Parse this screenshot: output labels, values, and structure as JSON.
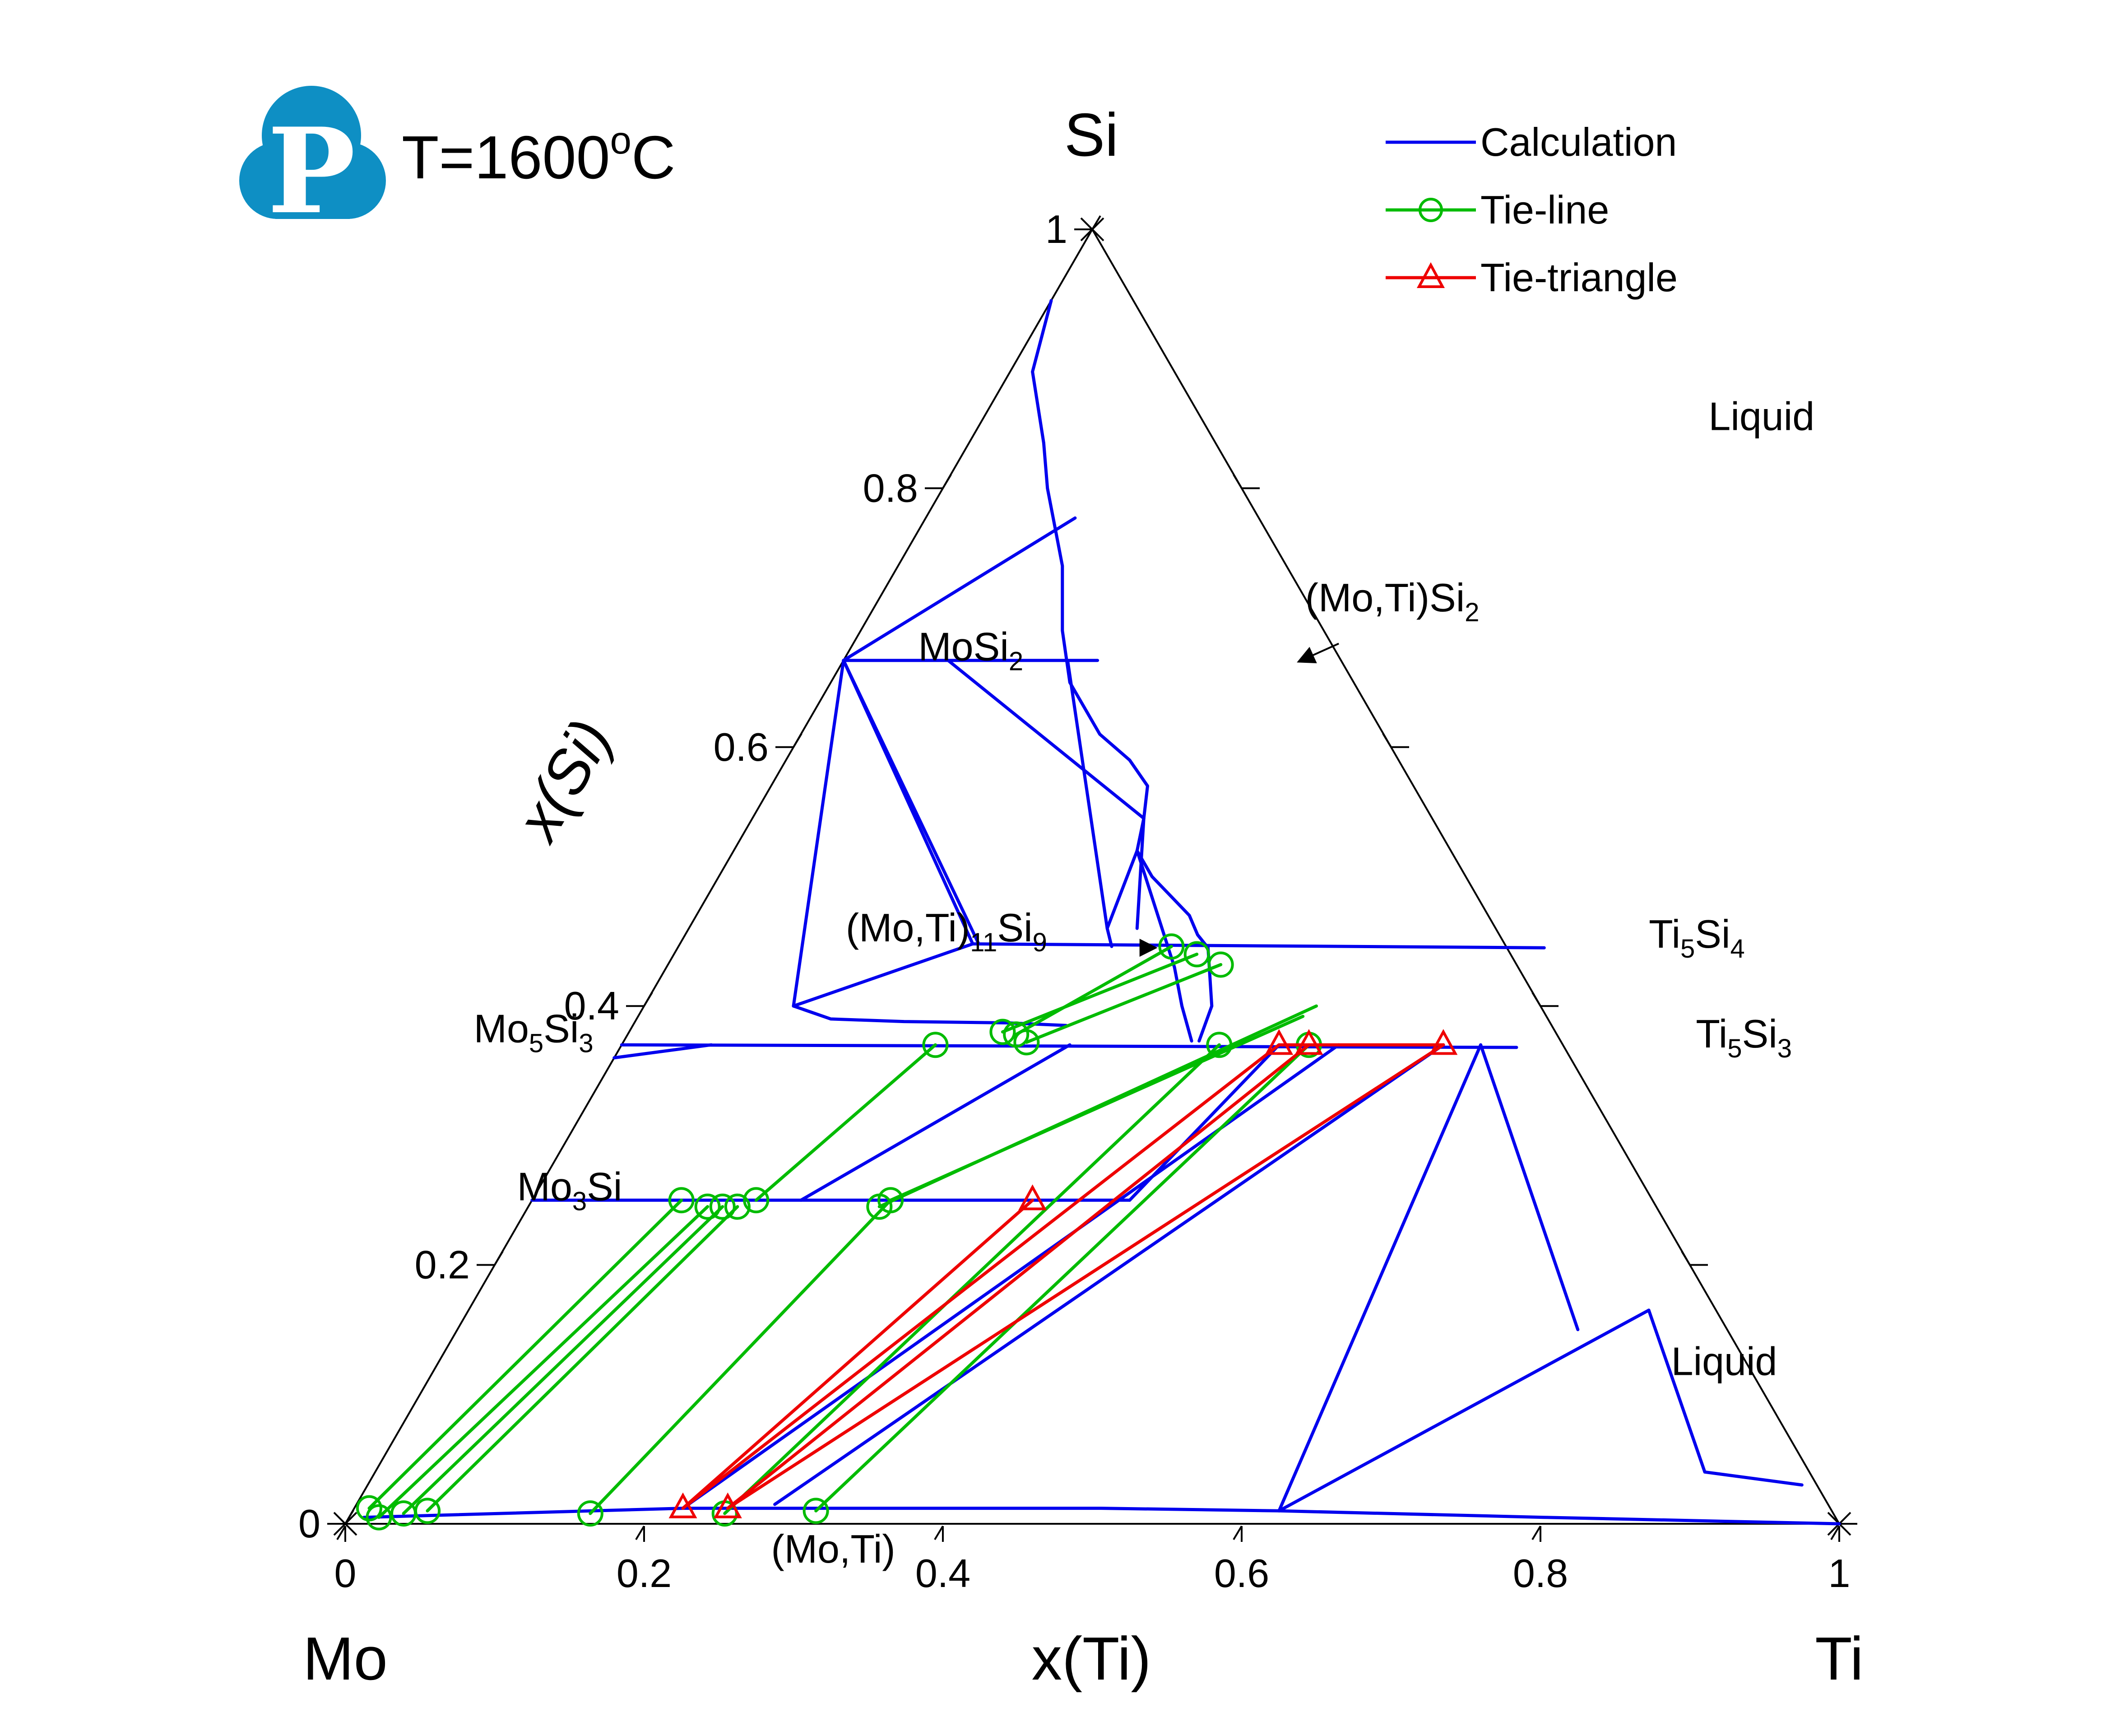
{
  "title": {
    "prefix": "T=1600",
    "sup": "o",
    "suffix": "C"
  },
  "logo": {
    "letter": "P",
    "color": "#0e8fc4"
  },
  "colors": {
    "calc": "#0000ee",
    "tieline": "#00bb00",
    "tietri": "#ee0000",
    "frame": "#000000"
  },
  "legend": {
    "items": [
      {
        "label": "Calculation",
        "kind": "calc"
      },
      {
        "label": "Tie-line",
        "kind": "tieline"
      },
      {
        "label": "Tie-triangle",
        "kind": "tietri"
      }
    ]
  },
  "chart_data": {
    "type": "ternary",
    "corners": {
      "top": "Si",
      "left": "Mo",
      "right": "Ti"
    },
    "xlabel": "x(Ti)",
    "ylabel": "x(Si)",
    "x_ticks": [
      "0",
      "0.2",
      "0.4",
      "0.6",
      "0.8",
      "1"
    ],
    "y_ticks": [
      "0",
      "0.2",
      "0.4",
      "0.6",
      "0.8",
      "1"
    ],
    "tick_values": [
      0,
      0.2,
      0.4,
      0.6,
      0.8,
      1
    ],
    "labels": [
      {
        "text": "Liquid",
        "ti": 0.49,
        "si": 0.845,
        "sub": ""
      },
      {
        "text": "Liquid",
        "ti": 0.83,
        "si": 0.115,
        "sub": ""
      },
      {
        "text": "MoSi",
        "sub": "2",
        "ti": 0.05,
        "si": 0.667
      },
      {
        "text": "Mo",
        "sub": "5",
        "after": "Si",
        "sub2": "3",
        "ti": -0.1,
        "si": 0.372
      },
      {
        "text": "Mo",
        "sub": "3",
        "after": "Si",
        "sub2": "",
        "ti": -0.01,
        "si": 0.25
      },
      {
        "text": "Ti",
        "sub": "5",
        "after": "Si",
        "sub2": "4",
        "ti": 0.65,
        "si": 0.445
      },
      {
        "text": "Ti",
        "sub": "5",
        "after": "Si",
        "sub2": "3",
        "ti": 0.72,
        "si": 0.368
      },
      {
        "text": "(Mo,Ti)",
        "sub": "",
        "ti": 0.3,
        "si": -0.03
      },
      {
        "text": "(Mo,Ti)",
        "sub": "11",
        "after": "Si",
        "sub2": "9",
        "ti": 0.11,
        "si": 0.45
      },
      {
        "text": "(Mo,Ti)Si",
        "sub": "2",
        "ti": 0.29,
        "si": 0.705
      }
    ],
    "arrows": [
      {
        "from": [
          0.31,
          0.445
        ],
        "to": [
          0.32,
          0.445
        ]
      },
      {
        "from": [
          0.325,
          0.68
        ],
        "to": [
          0.305,
          0.666
        ]
      }
    ],
    "series": [
      {
        "name": "Calculation",
        "kind": "calc",
        "segments": [
          [
            [
              0.0,
              0.945
            ],
            [
              0.015,
              0.89
            ],
            [
              0.05,
              0.835
            ],
            [
              0.07,
              0.8
            ],
            [
              0.09,
              0.77
            ],
            [
              0.11,
              0.74
            ],
            [
              0.12,
              0.72
            ],
            [
              0.135,
              0.69
            ],
            [
              0.16,
              0.65
            ],
            [
              0.2,
              0.61
            ],
            [
              0.23,
              0.59
            ],
            [
              0.252,
              0.57
            ],
            [
              0.262,
              0.545
            ],
            [
              0.27,
              0.52
            ],
            [
              0.29,
              0.5
            ],
            [
              0.31,
              0.485
            ],
            [
              0.33,
              0.47
            ],
            [
              0.343,
              0.455
            ],
            [
              0.355,
              0.445
            ]
          ],
          [
            [
              0.0,
              0.667
            ],
            [
              0.1,
              0.777
            ]
          ],
          [
            [
              0.0,
              0.667
            ],
            [
              0.17,
              0.667
            ]
          ],
          [
            [
              0.07,
              0.667
            ],
            [
              0.262,
              0.545
            ]
          ],
          [
            [
              0.15,
              0.667
            ],
            [
              0.28,
              0.46
            ]
          ],
          [
            [
              0.0,
              0.667
            ],
            [
              0.196,
              0.448
            ]
          ],
          [
            [
              0.0,
              0.667
            ],
            [
              0.2,
              0.448
            ]
          ],
          [
            [
              0.0,
              0.667
            ],
            [
              0.1,
              0.4
            ]
          ],
          [
            [
              0.1,
              0.4
            ],
            [
              0.196,
              0.448
            ]
          ],
          [
            [
              0.196,
              0.448
            ],
            [
              0.58,
              0.445
            ]
          ],
          [
            [
              0.1,
              0.4
            ],
            [
              0.13,
              0.39
            ],
            [
              0.18,
              0.388
            ],
            [
              0.25,
              0.387
            ]
          ],
          [
            [
              0.0,
              0.37
            ],
            [
              0.6,
              0.368
            ]
          ],
          [
            [
              0.25,
              0.387
            ],
            [
              0.29,
              0.385
            ]
          ],
          [
            [
              0.27,
              0.52
            ],
            [
              0.28,
              0.46
            ],
            [
              0.29,
              0.446
            ]
          ],
          [
            [
              0.262,
              0.545
            ],
            [
              0.3,
              0.46
            ]
          ],
          [
            [
              0.27,
              0.52
            ],
            [
              0.34,
              0.43
            ],
            [
              0.36,
              0.4
            ],
            [
              0.38,
              0.373
            ]
          ],
          [
            [
              0.355,
              0.445
            ],
            [
              0.38,
              0.4
            ],
            [
              0.385,
              0.373
            ]
          ],
          [
            [
              0.0,
              0.25
            ],
            [
              0.4,
              0.25
            ]
          ],
          [
            [
              0.18,
              0.25
            ],
            [
              0.3,
              0.37
            ]
          ],
          [
            [
              0.0,
              0.36
            ],
            [
              0.06,
              0.37
            ]
          ],
          [
            [
              0.4,
              0.25
            ],
            [
              0.44,
              0.37
            ]
          ],
          [
            [
              0.22,
              0.012
            ],
            [
              0.48,
              0.37
            ]
          ],
          [
            [
              0.28,
              0.015
            ],
            [
              0.55,
              0.37
            ]
          ],
          [
            [
              0.01,
              0.005
            ],
            [
              0.22,
              0.012
            ],
            [
              0.5,
              0.012
            ],
            [
              0.62,
              0.01
            ],
            [
              0.8,
              0.005
            ],
            [
              1.0,
              0.0
            ]
          ],
          [
            [
              0.62,
              0.01
            ],
            [
              0.575,
              0.37
            ]
          ],
          [
            [
              0.575,
              0.37
            ],
            [
              0.75,
              0.15
            ]
          ],
          [
            [
              0.62,
              0.01
            ],
            [
              0.79,
              0.165
            ]
          ],
          [
            [
              0.79,
              0.165
            ],
            [
              0.89,
              0.04
            ],
            [
              0.96,
              0.03
            ]
          ]
        ]
      },
      {
        "name": "Tie-line",
        "kind": "tieline",
        "lines": [
          [
            [
              0.01,
              0.012
            ],
            [
              0.1,
              0.25
            ]
          ],
          [
            [
              0.02,
              0.005
            ],
            [
              0.12,
              0.245
            ]
          ],
          [
            [
              0.035,
              0.008
            ],
            [
              0.13,
              0.245
            ]
          ],
          [
            [
              0.05,
              0.01
            ],
            [
              0.14,
              0.245
            ]
          ],
          [
            [
              0.16,
              0.008
            ],
            [
              0.24,
              0.25
            ]
          ],
          [
            [
              0.25,
              0.008
            ],
            [
              0.4,
              0.37
            ]
          ],
          [
            [
              0.31,
              0.01
            ],
            [
              0.46,
              0.37
            ]
          ],
          [
            [
              0.235,
              0.245
            ],
            [
              0.45,
              0.4
            ]
          ],
          [
            [
              0.24,
              0.25
            ],
            [
              0.445,
              0.392
            ]
          ],
          [
            [
              0.15,
              0.25
            ],
            [
              0.21,
              0.37
            ]
          ],
          [
            [
              0.25,
              0.38
            ],
            [
              0.35,
              0.44
            ]
          ],
          [
            [
              0.26,
              0.378
            ],
            [
              0.33,
              0.446
            ]
          ],
          [
            [
              0.27,
              0.372
            ],
            [
              0.37,
              0.432
            ]
          ]
        ],
        "markers": [
          [
            0.01,
            0.012
          ],
          [
            0.02,
            0.005
          ],
          [
            0.035,
            0.008
          ],
          [
            0.05,
            0.01
          ],
          [
            0.16,
            0.008
          ],
          [
            0.25,
            0.008
          ],
          [
            0.31,
            0.01
          ],
          [
            0.1,
            0.25
          ],
          [
            0.12,
            0.245
          ],
          [
            0.13,
            0.245
          ],
          [
            0.14,
            0.245
          ],
          [
            0.24,
            0.25
          ],
          [
            0.235,
            0.245
          ],
          [
            0.15,
            0.25
          ],
          [
            0.21,
            0.37
          ],
          [
            0.4,
            0.37
          ],
          [
            0.46,
            0.37
          ],
          [
            0.35,
            0.44
          ],
          [
            0.33,
            0.446
          ],
          [
            0.37,
            0.432
          ],
          [
            0.25,
            0.38
          ],
          [
            0.26,
            0.378
          ],
          [
            0.27,
            0.372
          ]
        ]
      },
      {
        "name": "Tie-triangle",
        "kind": "tietri",
        "lines": [
          [
            [
              0.22,
              0.012
            ],
            [
              0.335,
              0.25
            ]
          ],
          [
            [
              0.22,
              0.012
            ],
            [
              0.44,
              0.37
            ]
          ],
          [
            [
              0.25,
              0.012
            ],
            [
              0.46,
              0.37
            ]
          ],
          [
            [
              0.25,
              0.012
            ],
            [
              0.55,
              0.37
            ]
          ],
          [
            [
              0.44,
              0.37
            ],
            [
              0.55,
              0.37
            ]
          ]
        ],
        "markers": [
          [
            0.22,
            0.012
          ],
          [
            0.25,
            0.012
          ],
          [
            0.335,
            0.25
          ],
          [
            0.44,
            0.37
          ],
          [
            0.46,
            0.37
          ],
          [
            0.55,
            0.37
          ]
        ]
      }
    ]
  }
}
